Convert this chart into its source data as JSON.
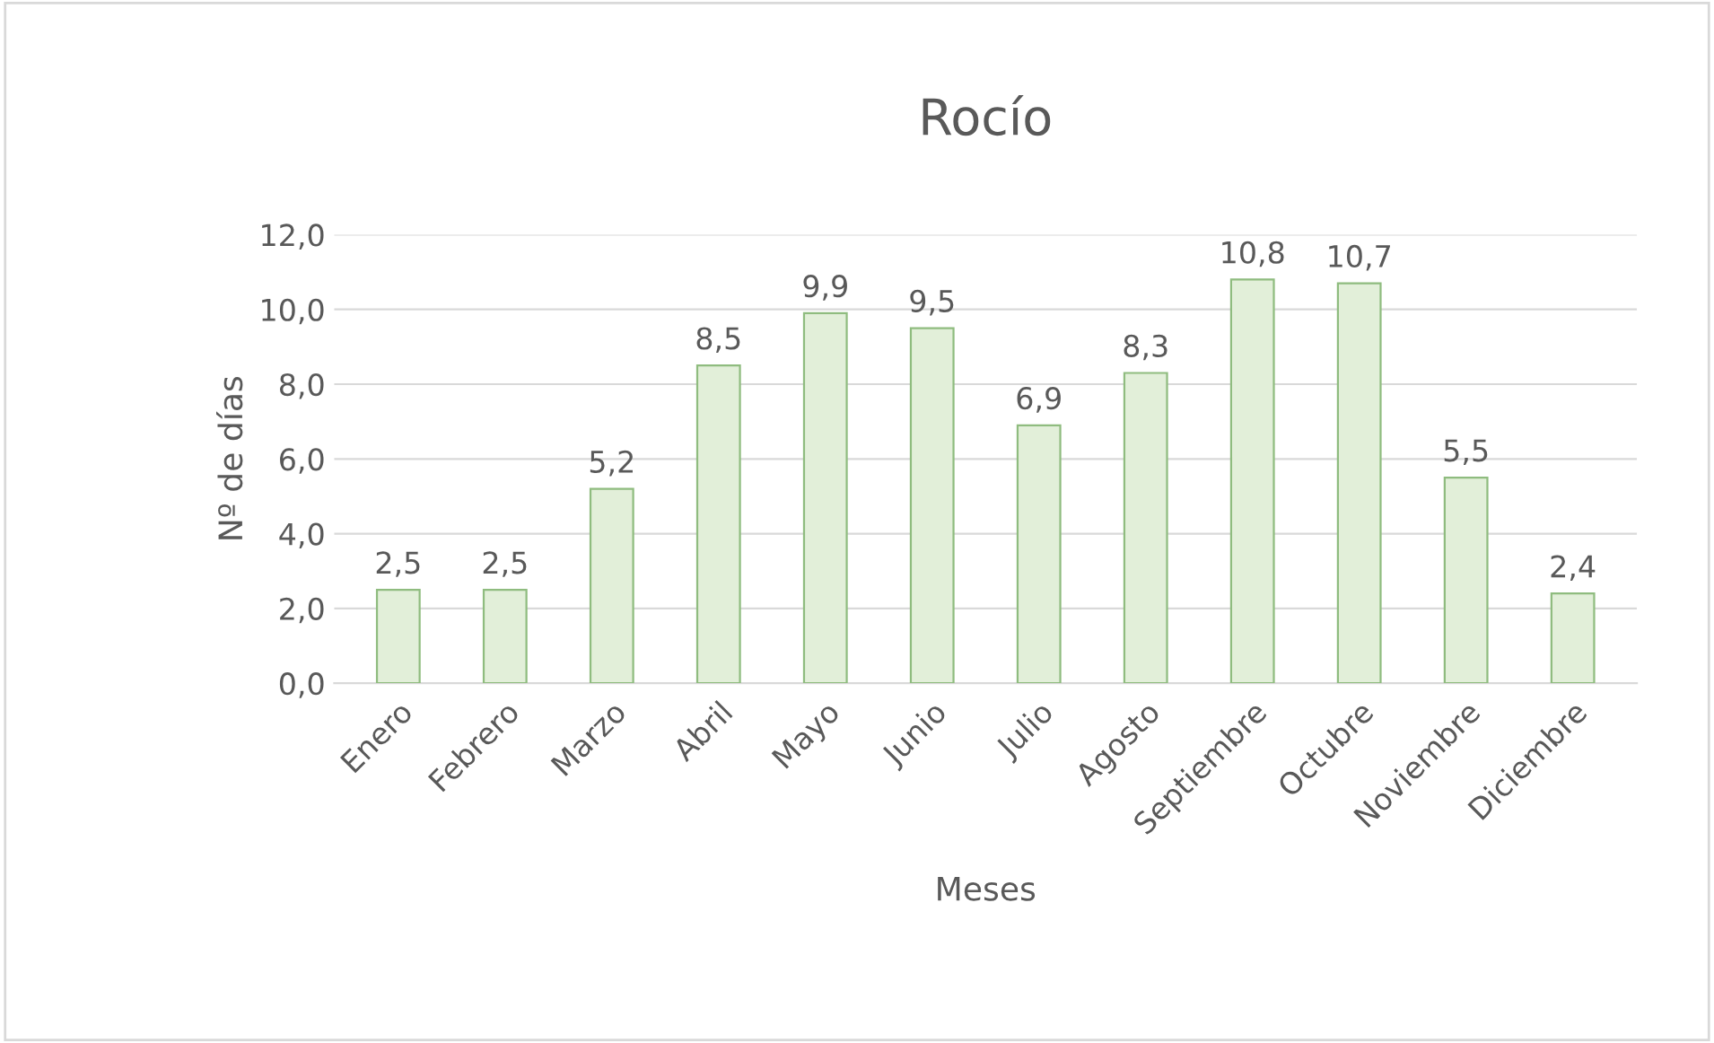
{
  "chart_data": {
    "type": "bar",
    "title": "Rocío",
    "xlabel": "Meses",
    "ylabel": "Nº de días",
    "categories": [
      "Enero",
      "Febrero",
      "Marzo",
      "Abril",
      "Mayo",
      "Junio",
      "Julio",
      "Agosto",
      "Septiembre",
      "Octubre",
      "Noviembre",
      "Diciembre"
    ],
    "values": [
      2.5,
      2.5,
      5.2,
      8.5,
      9.9,
      9.5,
      6.9,
      8.3,
      10.8,
      10.7,
      5.5,
      2.4
    ],
    "value_labels": [
      "2,5",
      "2,5",
      "5,2",
      "8,5",
      "9,9",
      "9,5",
      "6,9",
      "8,3",
      "10,8",
      "10,7",
      "5,5",
      "2,4"
    ],
    "color": "#e2efd9",
    "ylim": [
      0,
      12
    ],
    "yticks": [
      {
        "value": 0,
        "label": "0,0"
      },
      {
        "value": 2,
        "label": "2,0"
      },
      {
        "value": 4,
        "label": "4,0"
      },
      {
        "value": 6,
        "label": "6,0"
      },
      {
        "value": 8,
        "label": "8,0"
      },
      {
        "value": 10,
        "label": "10,0"
      },
      {
        "value": 12,
        "label": "12,0"
      }
    ],
    "grid": "y",
    "legend": false
  }
}
